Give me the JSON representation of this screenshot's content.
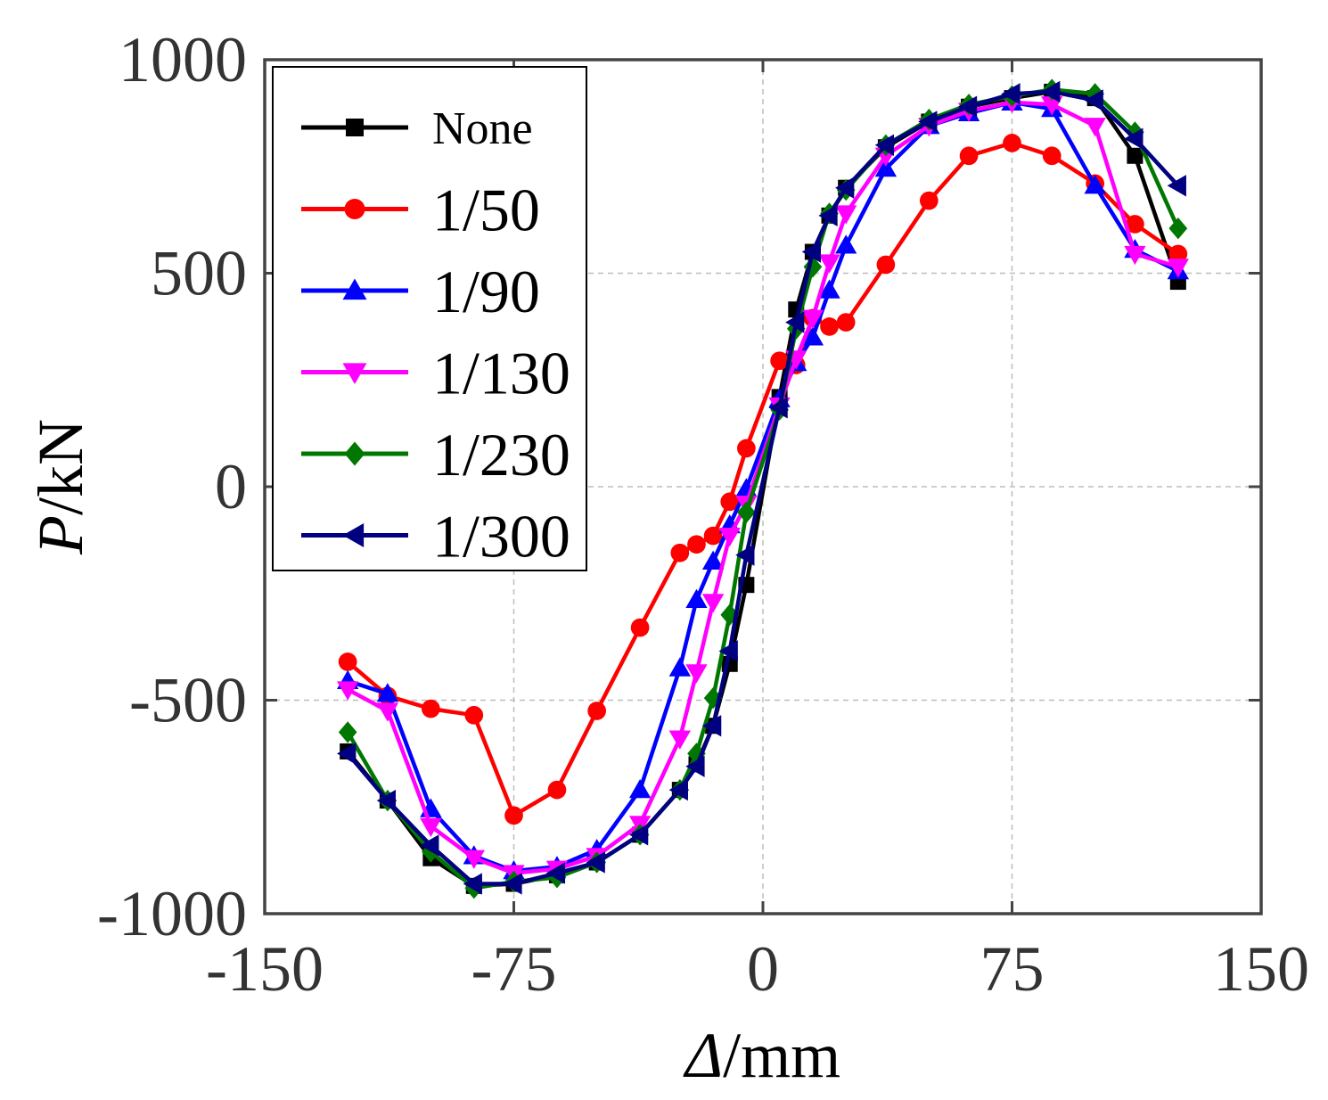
{
  "chart_data": {
    "type": "line",
    "title": "",
    "xlabel_symbol": "Δ",
    "xlabel_unit": "/mm",
    "ylabel_symbol": "P",
    "ylabel_unit": "/kN",
    "xlim": [
      -150,
      150
    ],
    "ylim": [
      -1000,
      1000
    ],
    "xticks": [
      -150,
      -75,
      0,
      75,
      150
    ],
    "yticks": [
      -1000,
      -500,
      0,
      500,
      1000
    ],
    "xtick_labels": [
      "-150",
      "-75",
      "0",
      "75",
      "150"
    ],
    "ytick_labels": [
      "-1000",
      "-500",
      "0",
      "500",
      "1000"
    ],
    "grid": true,
    "legend_position": "top-left",
    "series": [
      {
        "name": "None",
        "color": "#000000",
        "marker": "square",
        "points": [
          [
            -125,
            -620
          ],
          [
            -113,
            -735
          ],
          [
            -100,
            -870
          ],
          [
            -87,
            -935
          ],
          [
            -75,
            -930
          ],
          [
            -62,
            -910
          ],
          [
            -50,
            -880
          ],
          [
            -37,
            -815
          ],
          [
            -25,
            -710
          ],
          [
            -20,
            -650
          ],
          [
            -15,
            -560
          ],
          [
            -10,
            -415
          ],
          [
            -5,
            -230
          ],
          [
            5,
            210
          ],
          [
            10,
            415
          ],
          [
            15,
            550
          ],
          [
            20,
            635
          ],
          [
            25,
            700
          ],
          [
            37,
            795
          ],
          [
            50,
            855
          ],
          [
            62,
            890
          ],
          [
            75,
            910
          ],
          [
            87,
            925
          ],
          [
            100,
            910
          ],
          [
            112,
            775
          ],
          [
            125,
            480
          ]
        ]
      },
      {
        "name": "1/50",
        "color": "#ff0000",
        "marker": "circle",
        "points": [
          [
            -125,
            -410
          ],
          [
            -113,
            -490
          ],
          [
            -100,
            -520
          ],
          [
            -87,
            -535
          ],
          [
            -75,
            -770
          ],
          [
            -62,
            -710
          ],
          [
            -50,
            -525
          ],
          [
            -37,
            -330
          ],
          [
            -25,
            -155
          ],
          [
            -20,
            -135
          ],
          [
            -15,
            -115
          ],
          [
            -10,
            -35
          ],
          [
            -5,
            90
          ],
          [
            5,
            295
          ],
          [
            10,
            285
          ],
          [
            15,
            395
          ],
          [
            20,
            375
          ],
          [
            25,
            385
          ],
          [
            37,
            520
          ],
          [
            50,
            670
          ],
          [
            62,
            775
          ],
          [
            75,
            805
          ],
          [
            87,
            775
          ],
          [
            100,
            710
          ],
          [
            112,
            615
          ],
          [
            125,
            545
          ]
        ]
      },
      {
        "name": "1/90",
        "color": "#0000ff",
        "marker": "triangle-up",
        "points": [
          [
            -125,
            -455
          ],
          [
            -113,
            -485
          ],
          [
            -100,
            -755
          ],
          [
            -87,
            -865
          ],
          [
            -75,
            -900
          ],
          [
            -62,
            -890
          ],
          [
            -50,
            -850
          ],
          [
            -37,
            -710
          ],
          [
            -25,
            -425
          ],
          [
            -20,
            -265
          ],
          [
            -15,
            -175
          ],
          [
            -10,
            -90
          ],
          [
            -5,
            -5
          ],
          [
            5,
            205
          ],
          [
            10,
            290
          ],
          [
            15,
            350
          ],
          [
            20,
            460
          ],
          [
            25,
            565
          ],
          [
            37,
            745
          ],
          [
            50,
            845
          ],
          [
            62,
            875
          ],
          [
            75,
            900
          ],
          [
            87,
            885
          ],
          [
            100,
            705
          ],
          [
            112,
            555
          ],
          [
            125,
            505
          ]
        ]
      },
      {
        "name": "1/130",
        "color": "#ff00ff",
        "marker": "triangle-down",
        "points": [
          [
            -125,
            -475
          ],
          [
            -113,
            -525
          ],
          [
            -100,
            -795
          ],
          [
            -87,
            -870
          ],
          [
            -75,
            -905
          ],
          [
            -62,
            -895
          ],
          [
            -50,
            -865
          ],
          [
            -37,
            -790
          ],
          [
            -25,
            -590
          ],
          [
            -20,
            -435
          ],
          [
            -15,
            -270
          ],
          [
            -10,
            -115
          ],
          [
            -5,
            -40
          ],
          [
            5,
            190
          ],
          [
            10,
            300
          ],
          [
            15,
            395
          ],
          [
            20,
            525
          ],
          [
            25,
            640
          ],
          [
            37,
            775
          ],
          [
            50,
            845
          ],
          [
            62,
            880
          ],
          [
            75,
            900
          ],
          [
            87,
            895
          ],
          [
            100,
            845
          ],
          [
            112,
            545
          ],
          [
            125,
            515
          ]
        ]
      },
      {
        "name": "1/230",
        "color": "#007700",
        "marker": "diamond",
        "points": [
          [
            -125,
            -575
          ],
          [
            -113,
            -735
          ],
          [
            -100,
            -855
          ],
          [
            -87,
            -940
          ],
          [
            -75,
            -925
          ],
          [
            -62,
            -915
          ],
          [
            -50,
            -880
          ],
          [
            -37,
            -815
          ],
          [
            -25,
            -710
          ],
          [
            -20,
            -625
          ],
          [
            -15,
            -495
          ],
          [
            -10,
            -300
          ],
          [
            -5,
            -60
          ],
          [
            5,
            180
          ],
          [
            10,
            370
          ],
          [
            15,
            515
          ],
          [
            20,
            640
          ],
          [
            25,
            695
          ],
          [
            37,
            800
          ],
          [
            50,
            860
          ],
          [
            62,
            895
          ],
          [
            75,
            915
          ],
          [
            87,
            930
          ],
          [
            100,
            920
          ],
          [
            112,
            830
          ],
          [
            125,
            605
          ]
        ]
      },
      {
        "name": "1/300",
        "color": "#000080",
        "marker": "triangle-left",
        "points": [
          [
            -125,
            -625
          ],
          [
            -113,
            -735
          ],
          [
            -100,
            -840
          ],
          [
            -87,
            -930
          ],
          [
            -75,
            -930
          ],
          [
            -62,
            -905
          ],
          [
            -50,
            -880
          ],
          [
            -37,
            -815
          ],
          [
            -25,
            -710
          ],
          [
            -20,
            -655
          ],
          [
            -15,
            -560
          ],
          [
            -10,
            -385
          ],
          [
            -5,
            -160
          ],
          [
            5,
            185
          ],
          [
            10,
            385
          ],
          [
            15,
            550
          ],
          [
            20,
            635
          ],
          [
            25,
            700
          ],
          [
            37,
            800
          ],
          [
            50,
            855
          ],
          [
            62,
            890
          ],
          [
            75,
            920
          ],
          [
            87,
            925
          ],
          [
            100,
            905
          ],
          [
            112,
            815
          ],
          [
            125,
            705
          ]
        ]
      }
    ]
  }
}
